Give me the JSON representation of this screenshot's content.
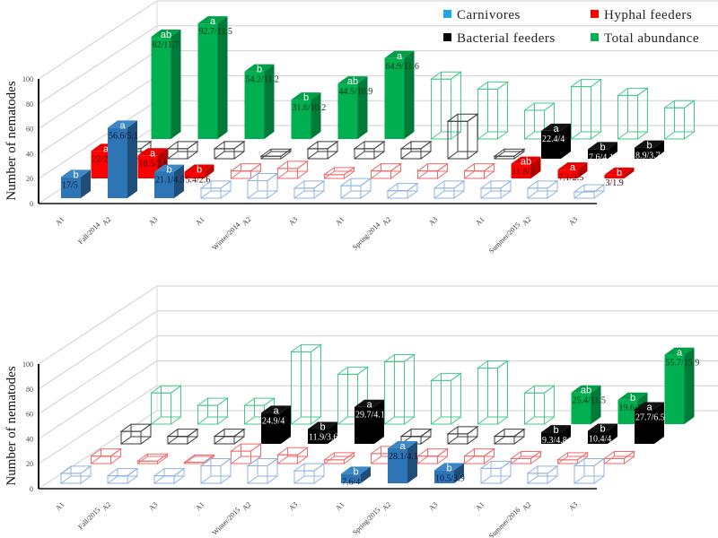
{
  "legend": [
    {
      "name": "Carnivores",
      "color": "#1ea7e6"
    },
    {
      "name": "Hyphal feeders",
      "color": "#ff0000"
    },
    {
      "name": "Bacterial feeders",
      "color": "#000000"
    },
    {
      "name": "Total abundance",
      "color": "#00b050"
    }
  ],
  "chart_data": [
    {
      "type": "bar",
      "ylabel": "Number of nematodes",
      "ylim": [
        0,
        100
      ],
      "yticks": [
        "0",
        "20",
        "40",
        "60",
        "80",
        "100"
      ],
      "grid": true,
      "legend_position": "top-right",
      "seasons": [
        "Fall/2014",
        "Winter/2014",
        "Spring/2014",
        "Summer/2015"
      ],
      "treatments": [
        "A1",
        "A2",
        "A3"
      ],
      "series": [
        {
          "name": "Carnivores",
          "values": [
            17,
            56.6,
            21.1,
            8,
            14,
            8,
            10,
            6,
            8,
            8,
            8,
            5
          ],
          "letters": [
            "b",
            "a",
            "b",
            null,
            null,
            null,
            null,
            null,
            null,
            null,
            null,
            null
          ],
          "labels": [
            "17/5",
            "56.6/5.1",
            "21.1/4.5",
            null,
            null,
            null,
            null,
            null,
            null,
            null,
            null,
            null
          ]
        },
        {
          "name": "Hyphal feeders",
          "values": [
            22,
            18.5,
            5.4,
            6,
            8,
            3,
            6,
            6,
            6,
            11.8,
            7.1,
            3
          ],
          "letters": [
            "a",
            "a",
            "b",
            null,
            null,
            null,
            null,
            null,
            null,
            "ab",
            "a",
            "b"
          ],
          "labels": [
            "22/2.6",
            "18.5/2.8",
            "5.4/2.6",
            null,
            null,
            null,
            null,
            null,
            null,
            "11.8/2",
            "7.1/2.5",
            "3/1.9"
          ]
        },
        {
          "name": "Bacterial feeders",
          "values": [
            8,
            8,
            8,
            2,
            8,
            8,
            8,
            30,
            2,
            22.4,
            7.6,
            8.9
          ],
          "letters": [
            null,
            null,
            null,
            null,
            null,
            null,
            null,
            null,
            null,
            "a",
            "b",
            "b"
          ],
          "labels": [
            null,
            null,
            null,
            null,
            null,
            null,
            null,
            null,
            null,
            "22.4/4",
            "7.6/4.1",
            "8.9/3.7"
          ]
        },
        {
          "name": "Total abundance",
          "values": [
            82,
            92.7,
            54.2,
            31.6,
            44.5,
            64.9,
            48,
            40,
            23,
            42,
            35,
            25
          ],
          "letters": [
            "ab",
            "a",
            "b",
            "b",
            "ab",
            "a",
            null,
            null,
            null,
            null,
            null,
            null
          ],
          "labels": [
            "82/11.7",
            "92.7/11.5",
            "54.2/11.2",
            "31.6/10.2",
            "44.5/10.9",
            "64.9/11.6",
            null,
            null,
            null,
            null,
            null,
            null
          ]
        }
      ]
    },
    {
      "type": "bar",
      "ylabel": "Number of nematodes",
      "ylim": [
        0,
        100
      ],
      "yticks": [
        "0",
        "20",
        "40",
        "60",
        "80",
        "100"
      ],
      "grid": true,
      "seasons": [
        "Fall/2015",
        "Winter/2015",
        "Spring/2015",
        "Summer/2016"
      ],
      "treatments": [
        "A1",
        "A2",
        "A3"
      ],
      "series": [
        {
          "name": "Carnivores",
          "values": [
            8,
            6,
            6,
            14,
            14,
            10,
            7.6,
            28.1,
            10.5,
            12,
            8,
            14
          ],
          "letters": [
            null,
            null,
            null,
            null,
            null,
            null,
            "b",
            "a",
            "b",
            null,
            null,
            null
          ],
          "labels": [
            null,
            null,
            null,
            null,
            null,
            null,
            "7.6/4",
            "28.1/4.1",
            "10.5/3.9",
            null,
            null,
            null
          ]
        },
        {
          "name": "Hyphal feeders",
          "values": [
            6,
            2,
            1,
            10,
            7,
            3,
            8,
            6,
            6,
            4,
            3,
            4
          ],
          "letters": [
            null,
            null,
            null,
            null,
            null,
            null,
            null,
            null,
            null,
            null,
            null,
            null
          ],
          "labels": [
            null,
            null,
            null,
            null,
            null,
            null,
            null,
            null,
            null,
            null,
            null,
            null
          ]
        },
        {
          "name": "Bacterial feeders",
          "values": [
            10,
            6,
            6,
            24.9,
            11.9,
            29.7,
            6,
            8,
            6,
            9.3,
            10.4,
            27.7
          ],
          "letters": [
            null,
            null,
            null,
            "a",
            "b",
            "a",
            null,
            null,
            null,
            "b",
            "b",
            "a"
          ],
          "labels": [
            null,
            null,
            null,
            "24.9/4",
            "11.9/3.6",
            "29.7/4.1",
            null,
            null,
            null,
            "9.3/4.8",
            "10.4/4",
            "27.7/6.5"
          ]
        },
        {
          "name": "Total abundance",
          "values": [
            25,
            15,
            15,
            58,
            40,
            50,
            35,
            45,
            25,
            25.4,
            19.6,
            55.7
          ],
          "letters": [
            null,
            null,
            null,
            null,
            null,
            null,
            null,
            null,
            null,
            "ab",
            "b",
            "a"
          ],
          "labels": [
            null,
            null,
            null,
            null,
            null,
            null,
            null,
            null,
            null,
            "25.4/11.5",
            "19.6/3",
            "55.7/15.9"
          ]
        }
      ]
    }
  ]
}
